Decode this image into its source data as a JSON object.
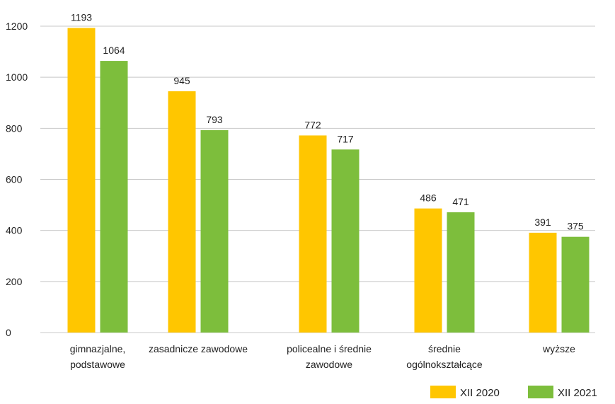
{
  "chart_data": {
    "type": "bar",
    "title": "",
    "xlabel": "",
    "ylabel": "",
    "categories": [
      [
        "gimnazjalne,",
        "podstawowe"
      ],
      [
        "zasadnicze zawodowe"
      ],
      [
        "policealne i średnie",
        "zawodowe"
      ],
      [
        "średnie",
        "ogólnokształcące"
      ],
      [
        "wyższe"
      ]
    ],
    "series": [
      {
        "name": "XII 2020",
        "color": "#FFC600",
        "values": [
          1193,
          945,
          772,
          486,
          391
        ]
      },
      {
        "name": "XII 2021",
        "color": "#7DBE3C",
        "values": [
          1064,
          793,
          717,
          471,
          375
        ]
      }
    ],
    "ylim": [
      0,
      1200
    ],
    "yticks": [
      0,
      200,
      400,
      600,
      800,
      1000,
      1200
    ],
    "grid": true,
    "gridColor": "#c8c8c8",
    "legend": "bottom-right"
  }
}
